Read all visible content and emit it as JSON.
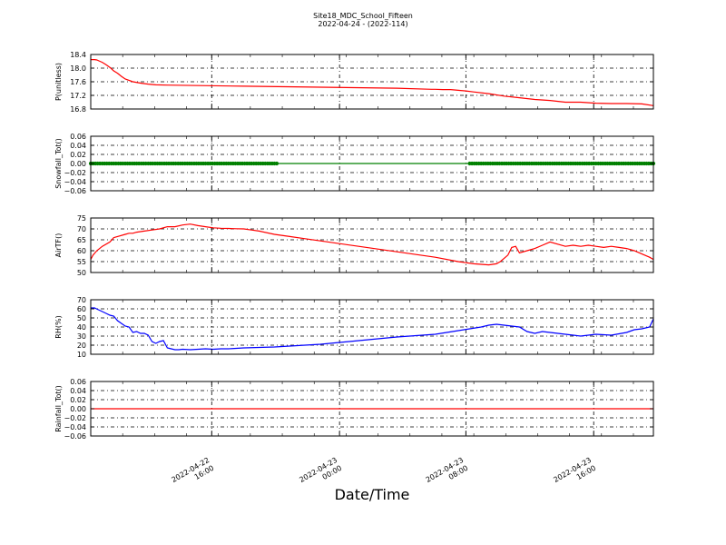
{
  "figure": {
    "title_line1": "Site18_MDC_School_Fifteen",
    "title_line2": "2022-04-24 - (2022-114)",
    "xlabel": "Date/Time"
  },
  "chart_data": [
    {
      "type": "line",
      "ylabel": "P(unitless)",
      "ylim": [
        16.8,
        18.4
      ],
      "yticks": [
        16.8,
        17.2,
        17.6,
        18.0,
        18.4
      ],
      "ytick_labels": [
        "16.8",
        "17.2",
        "17.6",
        "18.0",
        "18.4"
      ],
      "grid": true,
      "series": [
        {
          "color": "#ff0000",
          "marker": "none",
          "x": [
            0,
            0.05,
            0.08,
            0.12,
            0.15,
            0.2,
            0.25,
            0.3,
            0.35,
            0.4,
            0.45,
            0.55,
            0.65,
            0.75,
            0.85,
            1.0,
            2.0,
            3.0,
            4.0,
            4.45,
            4.5,
            4.6,
            4.7,
            4.8,
            4.9,
            5.0,
            5.2,
            5.4,
            5.6,
            5.8,
            6.0,
            6.2,
            6.4,
            6.6,
            6.8,
            7.0,
            7.2,
            7.35
          ],
          "y": [
            18.25,
            18.25,
            18.24,
            18.2,
            18.17,
            18.1,
            18.02,
            17.92,
            17.85,
            17.76,
            17.68,
            17.6,
            17.56,
            17.53,
            17.51,
            17.5,
            17.47,
            17.44,
            17.41,
            17.38,
            17.38,
            17.37,
            17.37,
            17.35,
            17.33,
            17.3,
            17.25,
            17.18,
            17.13,
            17.08,
            17.05,
            17.0,
            17.0,
            16.97,
            16.96,
            16.96,
            16.95,
            16.9
          ]
        }
      ]
    },
    {
      "type": "line",
      "ylabel": "Snowfall_Tot()",
      "ylim": [
        -0.06,
        0.06
      ],
      "yticks": [
        -0.06,
        -0.04,
        -0.02,
        0.0,
        0.02,
        0.04,
        0.06
      ],
      "ytick_labels": [
        "−0.06",
        "−0.04",
        "−0.02",
        "0.00",
        "0.02",
        "0.04",
        "0.06"
      ],
      "grid": true,
      "series": [
        {
          "color": "#008000",
          "marker": "circle",
          "marker_ranges": [
            [
              0,
              2.45
            ],
            [
              4.95,
              7.35
            ]
          ],
          "marker_step": 0.03,
          "x": [
            0,
            7.35
          ],
          "y": [
            0,
            0
          ]
        }
      ]
    },
    {
      "type": "line",
      "ylabel": "AirTF()",
      "ylim": [
        50,
        75
      ],
      "yticks": [
        50,
        55,
        60,
        65,
        70,
        75
      ],
      "ytick_labels": [
        "50",
        "55",
        "60",
        "65",
        "70",
        "75"
      ],
      "grid": true,
      "series": [
        {
          "color": "#ff0000",
          "marker": "none",
          "x": [
            0,
            0.03,
            0.08,
            0.15,
            0.25,
            0.3,
            0.35,
            0.45,
            0.5,
            0.55,
            0.6,
            0.7,
            0.8,
            0.9,
            1.0,
            1.1,
            1.2,
            1.3,
            1.4,
            1.5,
            1.6,
            1.7,
            1.8,
            1.9,
            2.0,
            2.1,
            2.2,
            2.4,
            2.6,
            2.8,
            3.0,
            3.5,
            4.0,
            4.5,
            4.8,
            5.0,
            5.2,
            5.3,
            5.35,
            5.4,
            5.45,
            5.5,
            5.55,
            5.6,
            5.7,
            5.8,
            5.9,
            6.0,
            6.1,
            6.2,
            6.3,
            6.4,
            6.5,
            6.6,
            6.7,
            6.8,
            6.9,
            7.0,
            7.1,
            7.2,
            7.3,
            7.35
          ],
          "y": [
            56,
            58,
            60,
            62,
            64,
            66,
            66.5,
            67.5,
            68,
            68,
            68.5,
            69,
            69.5,
            70,
            71,
            71,
            71.8,
            72.2,
            71.5,
            71,
            70.5,
            70.3,
            70.2,
            70.1,
            70,
            69.5,
            69,
            67.5,
            66.5,
            65.5,
            64.5,
            62,
            59.5,
            57,
            55,
            54,
            53.5,
            54,
            55,
            56.5,
            58,
            61.5,
            62,
            59,
            60,
            61,
            62.5,
            64,
            63,
            62,
            62.5,
            62,
            62.5,
            62,
            61.5,
            62,
            61.5,
            61,
            60,
            58.5,
            57,
            56
          ]
        }
      ]
    },
    {
      "type": "line",
      "ylabel": "RH(%)",
      "ylim": [
        10,
        70
      ],
      "yticks": [
        10,
        20,
        30,
        40,
        50,
        60,
        70
      ],
      "ytick_labels": [
        "10",
        "20",
        "30",
        "40",
        "50",
        "60",
        "70"
      ],
      "grid": true,
      "series": [
        {
          "color": "#0000ff",
          "marker": "none",
          "x": [
            0,
            0.05,
            0.1,
            0.15,
            0.2,
            0.25,
            0.3,
            0.35,
            0.4,
            0.45,
            0.5,
            0.55,
            0.6,
            0.65,
            0.7,
            0.75,
            0.8,
            0.85,
            0.9,
            0.95,
            1.0,
            1.05,
            1.1,
            1.15,
            1.2,
            1.3,
            1.4,
            1.5,
            1.6,
            1.7,
            1.8,
            1.9,
            2.0,
            2.2,
            2.4,
            2.6,
            3.0,
            3.5,
            4.0,
            4.5,
            4.8,
            4.95,
            5.1,
            5.2,
            5.3,
            5.4,
            5.5,
            5.6,
            5.7,
            5.8,
            5.9,
            6.0,
            6.2,
            6.4,
            6.6,
            6.8,
            7.0,
            7.1,
            7.2,
            7.3,
            7.35
          ],
          "y": [
            61,
            61,
            59,
            57,
            55,
            53,
            52,
            47,
            44,
            41,
            40,
            34,
            35,
            33,
            33,
            31,
            24,
            22,
            24,
            25,
            17,
            16,
            15,
            15,
            15.5,
            15,
            15.5,
            16,
            15.5,
            16,
            16,
            16.5,
            17,
            17.5,
            18,
            19,
            21,
            25,
            29,
            32,
            36,
            38,
            40,
            42,
            43,
            42,
            41,
            40,
            35,
            33,
            35,
            34,
            32,
            30,
            32,
            31,
            34,
            37,
            38,
            40,
            49
          ]
        }
      ]
    },
    {
      "type": "line",
      "ylabel": "Rainfall_Tot()",
      "ylim": [
        -0.06,
        0.06
      ],
      "yticks": [
        -0.06,
        -0.04,
        -0.02,
        0.0,
        0.02,
        0.04,
        0.06
      ],
      "ytick_labels": [
        "−0.06",
        "−0.04",
        "−0.02",
        "0.00",
        "0.02",
        "0.04",
        "0.06"
      ],
      "grid": true,
      "series": [
        {
          "color": "#ff0000",
          "marker": "none",
          "x": [
            0,
            7.35
          ],
          "y": [
            0,
            0
          ]
        }
      ]
    }
  ],
  "x_axis": {
    "range": [
      0,
      7.35
    ],
    "major_ticks": [
      1.58,
      3.25,
      4.9,
      6.57
    ],
    "minor_step": 0.417,
    "tick_labels": [
      [
        "2022-04-22",
        "16:00"
      ],
      [
        "2022-04-23",
        "00:00"
      ],
      [
        "2022-04-23",
        "08:00"
      ],
      [
        "2022-04-23",
        "16:00"
      ]
    ]
  }
}
